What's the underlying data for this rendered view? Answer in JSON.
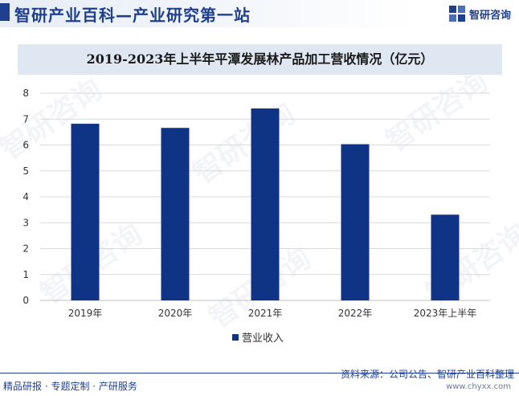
{
  "header": {
    "brand_title": "智研产业百科—产业研究第一站",
    "logo_text": "智研咨询"
  },
  "watermark": {
    "text": "智研咨询"
  },
  "footer": {
    "left": "精品研报 · 专题定制 · 产研服务",
    "source": "资料来源：公司公告、智研产业百科整理",
    "url": "www.chyxx.com"
  },
  "colors": {
    "bar": "#0f3385",
    "brand": "#1f3f8f",
    "grid": "#d9d9d9"
  },
  "chart_data": {
    "type": "bar",
    "title": "2019-2023年上半年平潭发展林产品加工营收情况（亿元）",
    "categories": [
      "2019年",
      "2020年",
      "2021年",
      "2022年",
      "2023年上半年"
    ],
    "series": [
      {
        "name": "营业收入",
        "values": [
          6.82,
          6.66,
          7.41,
          6.03,
          3.31
        ]
      }
    ],
    "ylim": [
      0,
      8
    ],
    "yticks": [
      0,
      1,
      2,
      3,
      4,
      5,
      6,
      7,
      8
    ],
    "grid": true,
    "legend": "bottom"
  }
}
